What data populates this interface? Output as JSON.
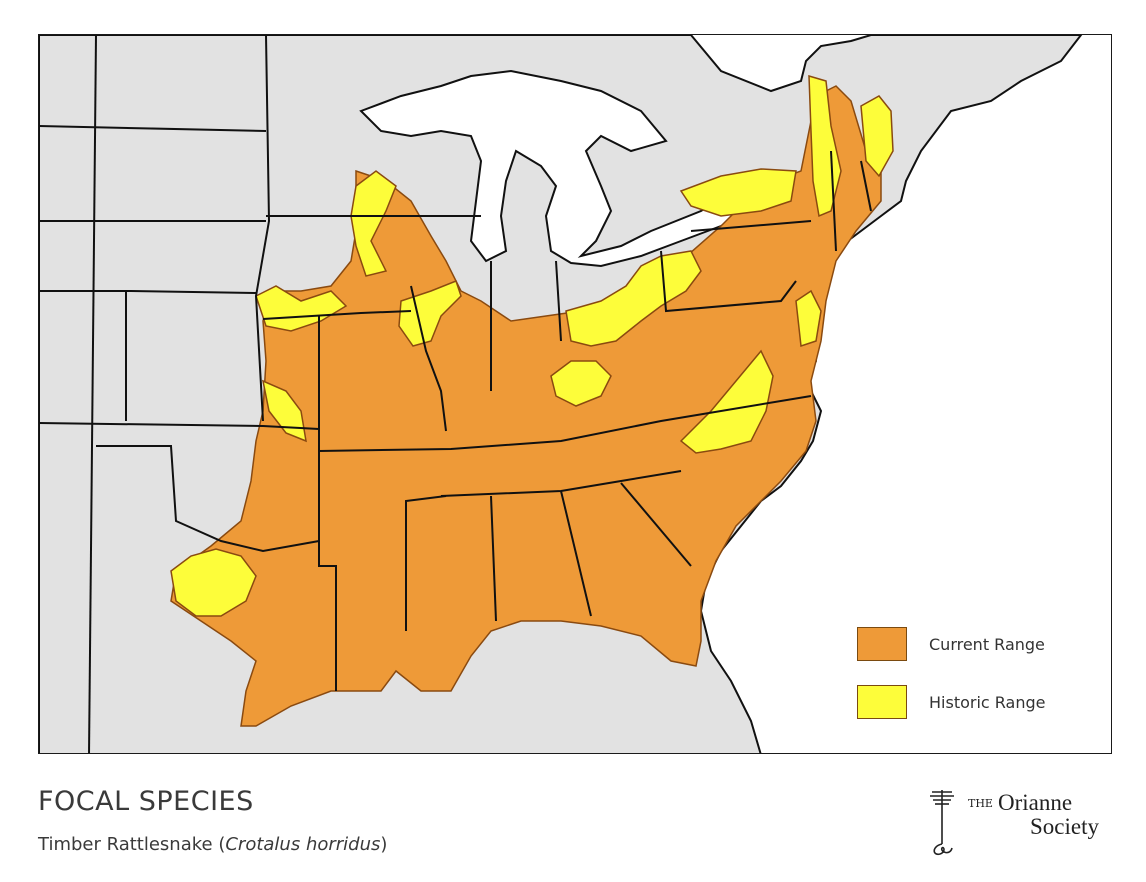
{
  "map": {
    "region": "Eastern United States",
    "colors": {
      "water": "#ffffff",
      "land_outside": "#e2e2e2",
      "current_range": "#ee9a38",
      "historic_range": "#fdfd3a",
      "border": "#111111"
    }
  },
  "legend": {
    "items": [
      {
        "label": "Current Range",
        "color": "#ee9a38"
      },
      {
        "label": "Historic Range",
        "color": "#fdfd3a"
      }
    ]
  },
  "footer": {
    "title": "FOCAL SPECIES",
    "subtitle_prefix": "Timber Rattlesnake (",
    "subtitle_scientific": "Crotalus horridus",
    "subtitle_suffix": ")"
  },
  "logo": {
    "the": "THE",
    "line1": "Orianne",
    "line2": "Society",
    "icon": "tree-icon"
  }
}
